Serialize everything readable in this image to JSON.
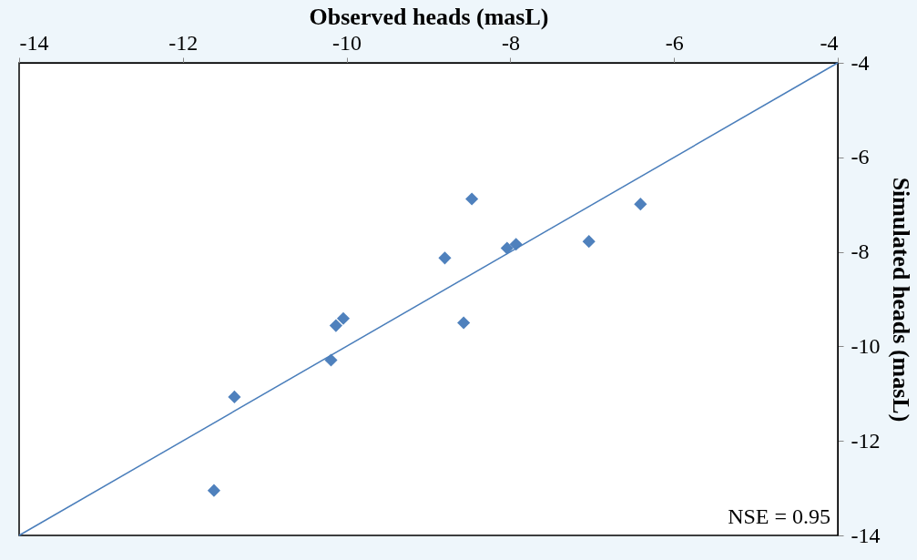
{
  "chart_data": {
    "type": "scatter",
    "xlabel": "Observed  heads (masL)",
    "ylabel": "Simulated heads (masL)",
    "x": [
      -11.62,
      -11.37,
      -10.19,
      -10.13,
      -10.04,
      -8.8,
      -8.47,
      -8.57,
      -8.04,
      -7.93,
      -7.04,
      -6.41
    ],
    "series": [
      {
        "color": "#4f81bd",
        "values": [
          -13.05,
          -11.07,
          -10.29,
          -9.56,
          -9.41,
          -8.13,
          -6.88,
          -9.5,
          -7.92,
          -7.84,
          -7.78,
          -6.99
        ],
        "marker": "diamond"
      },
      {
        "type": "line",
        "color": "#4a7ebb",
        "x": [
          -14,
          -4
        ],
        "values": [
          -14,
          -4
        ],
        "marker": "none",
        "line_style": "solid"
      }
    ],
    "xlim": [
      -14,
      -4
    ],
    "ylim": [
      -14,
      -4
    ],
    "xticks": [
      -14,
      -12,
      -10,
      -8,
      -6,
      -4
    ],
    "yticks": [
      -14,
      -12,
      -10,
      -8,
      -6,
      -4
    ],
    "grid": false,
    "annotations": [
      "NSE = 0.95"
    ]
  }
}
